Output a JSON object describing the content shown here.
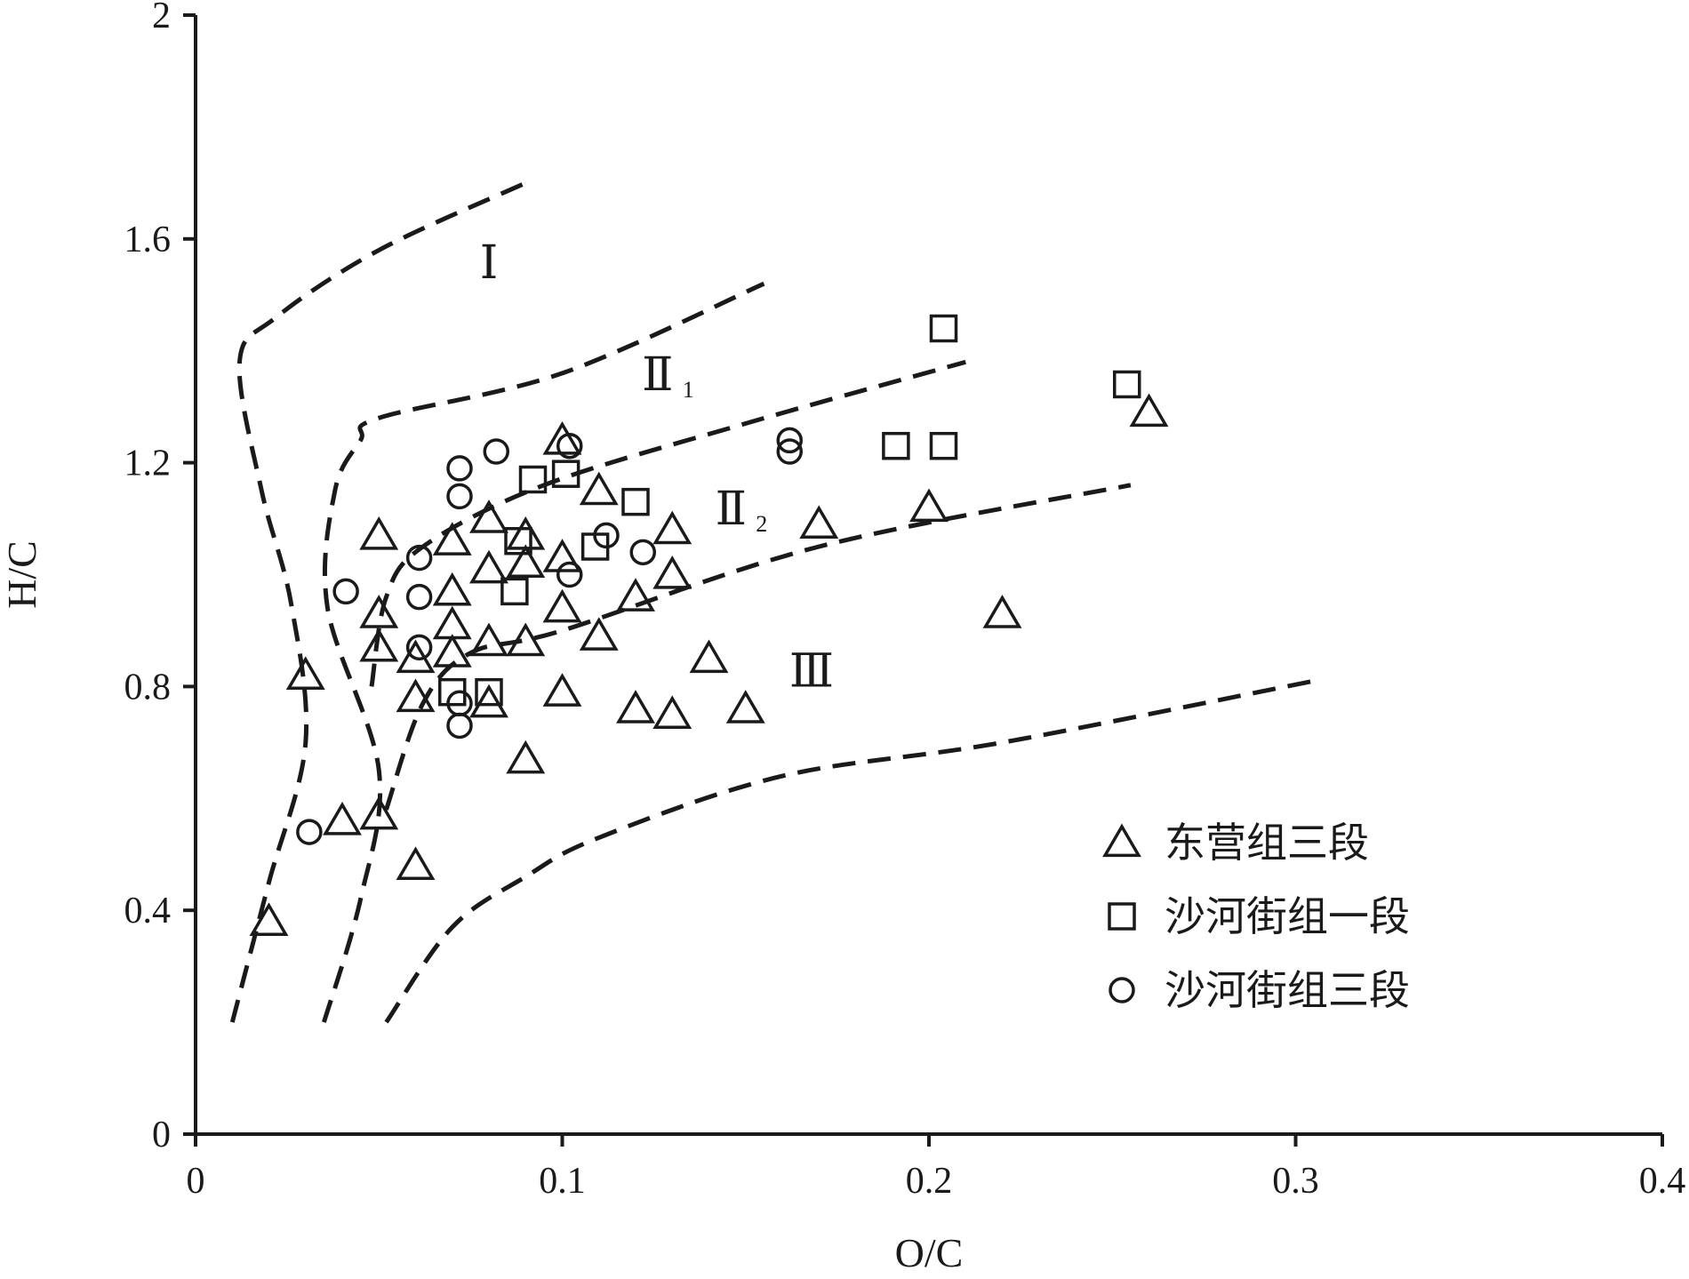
{
  "chart_data": {
    "type": "scatter",
    "title": "",
    "xlabel": "O/C",
    "ylabel": "H/C",
    "xlim": [
      0,
      0.4
    ],
    "ylim": [
      0,
      2
    ],
    "xticks": [
      "0",
      "0.1",
      "0.2",
      "0.3",
      "0.4"
    ],
    "yticks": [
      "0",
      "0.4",
      "0.8",
      "1.2",
      "1.6",
      "2"
    ],
    "grid": false,
    "legend_position": "bottom-right",
    "colors": {
      "ink": "#1a1a1a",
      "background": "#ffffff"
    },
    "regions": [
      {
        "label": "Ⅰ",
        "sub": "",
        "x": 0.08,
        "y": 1.53
      },
      {
        "label": "Ⅱ",
        "sub": "1",
        "x": 0.126,
        "y": 1.33
      },
      {
        "label": "Ⅱ",
        "sub": "2",
        "x": 0.146,
        "y": 1.09
      },
      {
        "label": "Ⅲ",
        "sub": "",
        "x": 0.168,
        "y": 0.8
      }
    ],
    "boundaries": [
      [
        [
          0.01,
          0.2
        ],
        [
          0.02,
          0.45
        ],
        [
          0.03,
          0.7
        ],
        [
          0.026,
          0.95
        ],
        [
          0.018,
          1.15
        ],
        [
          0.012,
          1.38
        ],
        [
          0.022,
          1.46
        ],
        [
          0.05,
          1.58
        ],
        [
          0.09,
          1.7
        ]
      ],
      [
        [
          0.035,
          0.2
        ],
        [
          0.045,
          0.42
        ],
        [
          0.05,
          0.65
        ],
        [
          0.036,
          0.94
        ],
        [
          0.038,
          1.15
        ],
        [
          0.045,
          1.24
        ],
        [
          0.05,
          1.28
        ],
        [
          0.1,
          1.36
        ],
        [
          0.155,
          1.52
        ]
      ],
      [
        [
          0.048,
          0.8
        ],
        [
          0.052,
          0.96
        ],
        [
          0.062,
          1.05
        ],
        [
          0.095,
          1.16
        ],
        [
          0.15,
          1.27
        ],
        [
          0.21,
          1.38
        ]
      ],
      [
        [
          0.052,
          0.58
        ],
        [
          0.062,
          0.77
        ],
        [
          0.075,
          0.86
        ],
        [
          0.1,
          0.9
        ],
        [
          0.17,
          1.05
        ],
        [
          0.255,
          1.16
        ]
      ],
      [
        [
          0.052,
          0.2
        ],
        [
          0.07,
          0.37
        ],
        [
          0.09,
          0.46
        ],
        [
          0.11,
          0.53
        ],
        [
          0.16,
          0.64
        ],
        [
          0.22,
          0.7
        ],
        [
          0.305,
          0.81
        ]
      ]
    ],
    "series": [
      {
        "name": "东营组三段",
        "marker": "triangle",
        "points": [
          [
            0.02,
            0.38
          ],
          [
            0.03,
            0.82
          ],
          [
            0.04,
            0.56
          ],
          [
            0.05,
            0.57
          ],
          [
            0.05,
            1.07
          ],
          [
            0.05,
            0.93
          ],
          [
            0.05,
            0.87
          ],
          [
            0.06,
            0.48
          ],
          [
            0.06,
            0.85
          ],
          [
            0.06,
            0.78
          ],
          [
            0.07,
            1.06
          ],
          [
            0.07,
            0.97
          ],
          [
            0.07,
            0.91
          ],
          [
            0.07,
            0.86
          ],
          [
            0.08,
            1.1
          ],
          [
            0.08,
            1.01
          ],
          [
            0.08,
            0.88
          ],
          [
            0.08,
            0.77
          ],
          [
            0.09,
            1.07
          ],
          [
            0.09,
            1.02
          ],
          [
            0.09,
            0.88
          ],
          [
            0.09,
            0.67
          ],
          [
            0.1,
            1.24
          ],
          [
            0.1,
            1.03
          ],
          [
            0.1,
            0.94
          ],
          [
            0.1,
            0.79
          ],
          [
            0.11,
            1.15
          ],
          [
            0.11,
            0.89
          ],
          [
            0.12,
            0.96
          ],
          [
            0.12,
            0.76
          ],
          [
            0.13,
            1.08
          ],
          [
            0.13,
            1.0
          ],
          [
            0.13,
            0.75
          ],
          [
            0.14,
            0.85
          ],
          [
            0.15,
            0.76
          ],
          [
            0.17,
            1.09
          ],
          [
            0.2,
            1.12
          ],
          [
            0.22,
            0.93
          ],
          [
            0.26,
            1.29
          ]
        ]
      },
      {
        "name": "沙河街组一段",
        "marker": "square",
        "points": [
          [
            0.07,
            0.79
          ],
          [
            0.08,
            0.79
          ],
          [
            0.087,
            0.97
          ],
          [
            0.088,
            1.06
          ],
          [
            0.092,
            1.17
          ],
          [
            0.101,
            1.18
          ],
          [
            0.109,
            1.05
          ],
          [
            0.12,
            1.13
          ],
          [
            0.191,
            1.23
          ],
          [
            0.204,
            1.44
          ],
          [
            0.204,
            1.23
          ],
          [
            0.254,
            1.34
          ]
        ]
      },
      {
        "name": "沙河街组三段",
        "marker": "circle",
        "points": [
          [
            0.031,
            0.54
          ],
          [
            0.041,
            0.97
          ],
          [
            0.061,
            1.03
          ],
          [
            0.061,
            0.96
          ],
          [
            0.061,
            0.87
          ],
          [
            0.072,
            1.19
          ],
          [
            0.072,
            1.14
          ],
          [
            0.072,
            0.77
          ],
          [
            0.072,
            0.73
          ],
          [
            0.082,
            1.22
          ],
          [
            0.102,
            1.23
          ],
          [
            0.102,
            1.0
          ],
          [
            0.112,
            1.07
          ],
          [
            0.122,
            1.04
          ],
          [
            0.162,
            1.24
          ],
          [
            0.162,
            1.22
          ]
        ]
      }
    ]
  }
}
